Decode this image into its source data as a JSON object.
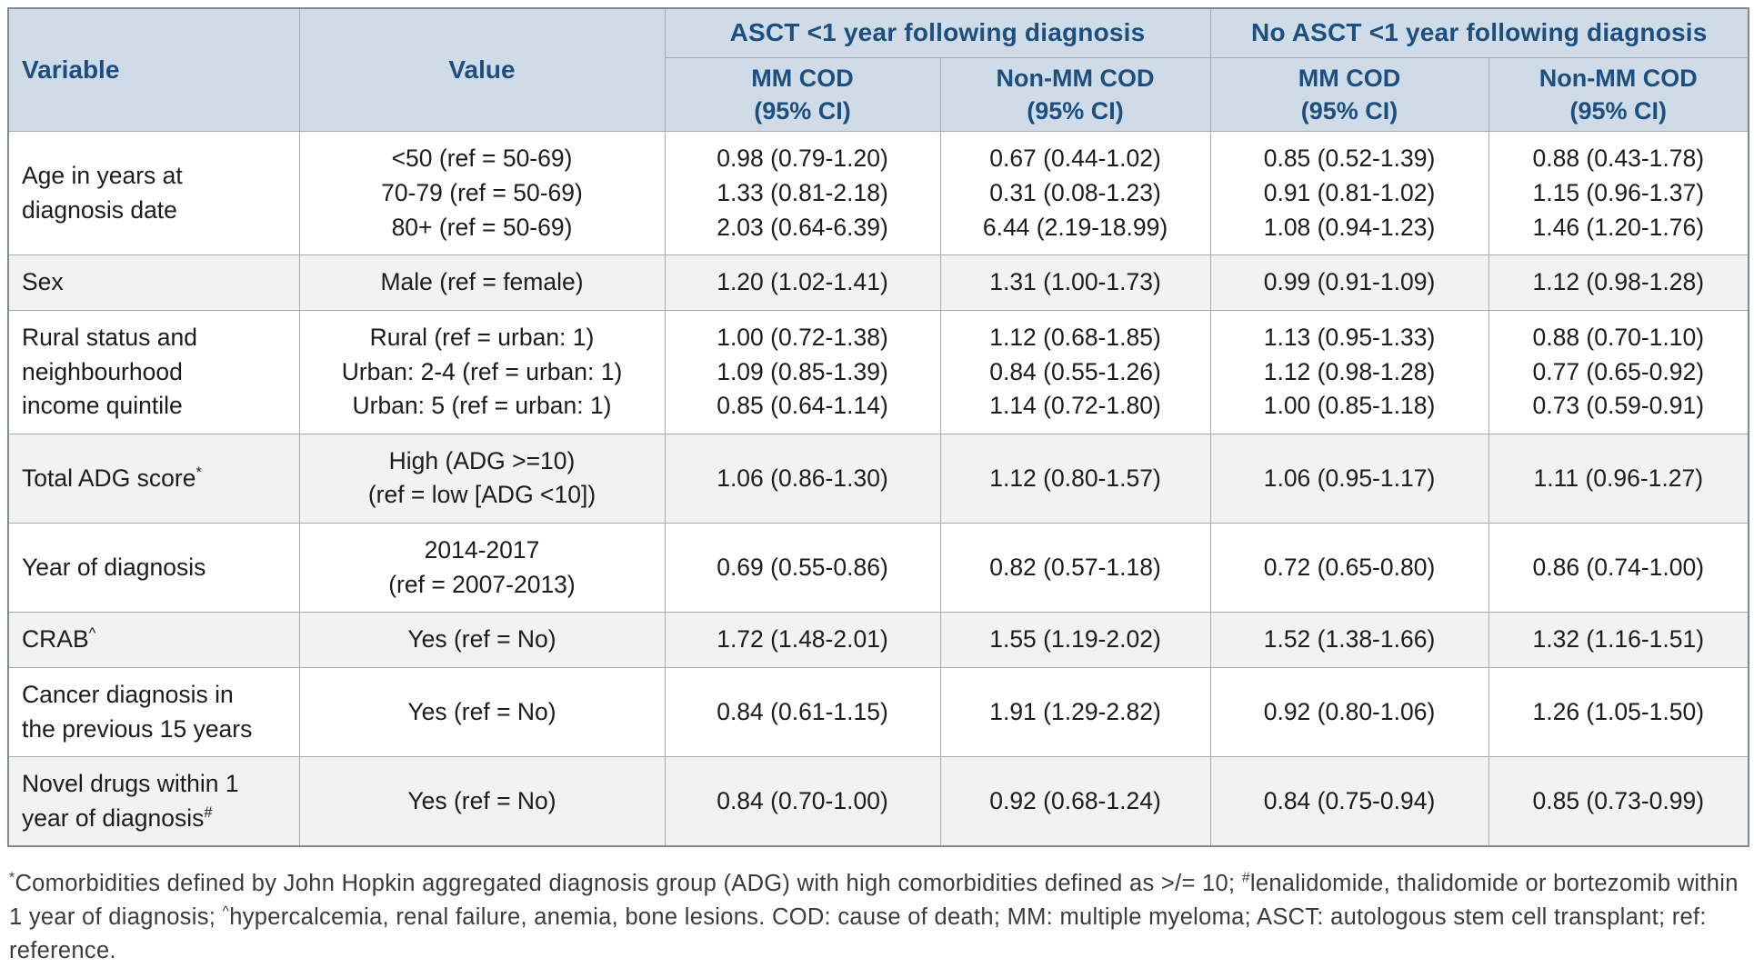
{
  "table": {
    "header": {
      "variable": "Variable",
      "value": "Value",
      "group_asct": "ASCT <1 year following diagnosis",
      "group_no_asct": "No ASCT <1 year following diagnosis",
      "subs": [
        {
          "l1": "MM COD",
          "l2": "(95% CI)"
        },
        {
          "l1": "Non-MM COD",
          "l2": "(95% CI)"
        },
        {
          "l1": "MM COD",
          "l2": "(95% CI)"
        },
        {
          "l1": "Non-MM COD",
          "l2": "(95% CI)"
        }
      ]
    },
    "rows": [
      {
        "variable": [
          "Age in years at",
          "diagnosis date"
        ],
        "variable_sup": "",
        "value": [
          "<50 (ref = 50-69)",
          "70-79 (ref = 50-69)",
          "80+ (ref = 50-69)"
        ],
        "asct_mm_cod": [
          "0.98 (0.79-1.20)",
          "1.33 (0.81-2.18)",
          "2.03 (0.64-6.39)"
        ],
        "asct_nonmm_cod": [
          "0.67 (0.44-1.02)",
          "0.31 (0.08-1.23)",
          "6.44 (2.19-18.99)"
        ],
        "noasct_mm_cod": [
          "0.85 (0.52-1.39)",
          "0.91 (0.81-1.02)",
          "1.08 (0.94-1.23)"
        ],
        "noasct_nonmm_cod": [
          "0.88 (0.43-1.78)",
          "1.15 (0.96-1.37)",
          "1.46 (1.20-1.76)"
        ]
      },
      {
        "variable": [
          "Sex"
        ],
        "variable_sup": "",
        "value": [
          "Male (ref = female)"
        ],
        "asct_mm_cod": [
          "1.20 (1.02-1.41)"
        ],
        "asct_nonmm_cod": [
          "1.31 (1.00-1.73)"
        ],
        "noasct_mm_cod": [
          "0.99 (0.91-1.09)"
        ],
        "noasct_nonmm_cod": [
          "1.12 (0.98-1.28)"
        ]
      },
      {
        "variable": [
          "Rural status and",
          "neighbourhood",
          "income quintile"
        ],
        "variable_sup": "",
        "value": [
          "Rural (ref = urban: 1)",
          "Urban: 2-4 (ref = urban: 1)",
          "Urban: 5 (ref = urban: 1)"
        ],
        "asct_mm_cod": [
          "1.00 (0.72-1.38)",
          "1.09 (0.85-1.39)",
          "0.85 (0.64-1.14)"
        ],
        "asct_nonmm_cod": [
          "1.12 (0.68-1.85)",
          "0.84 (0.55-1.26)",
          "1.14 (0.72-1.80)"
        ],
        "noasct_mm_cod": [
          "1.13 (0.95-1.33)",
          "1.12 (0.98-1.28)",
          "1.00 (0.85-1.18)"
        ],
        "noasct_nonmm_cod": [
          "0.88 (0.70-1.10)",
          "0.77 (0.65-0.92)",
          "0.73 (0.59-0.91)"
        ]
      },
      {
        "variable": [
          "Total ADG score"
        ],
        "variable_sup": "*",
        "value": [
          "High (ADG >=10)",
          "(ref = low [ADG <10])"
        ],
        "asct_mm_cod": [
          "1.06 (0.86-1.30)"
        ],
        "asct_nonmm_cod": [
          "1.12 (0.80-1.57)"
        ],
        "noasct_mm_cod": [
          "1.06 (0.95-1.17)"
        ],
        "noasct_nonmm_cod": [
          "1.11 (0.96-1.27)"
        ]
      },
      {
        "variable": [
          "Year of diagnosis"
        ],
        "variable_sup": "",
        "value": [
          "2014-2017",
          "(ref = 2007-2013)"
        ],
        "asct_mm_cod": [
          "0.69 (0.55-0.86)"
        ],
        "asct_nonmm_cod": [
          "0.82 (0.57-1.18)"
        ],
        "noasct_mm_cod": [
          "0.72 (0.65-0.80)"
        ],
        "noasct_nonmm_cod": [
          "0.86 (0.74-1.00)"
        ]
      },
      {
        "variable": [
          "CRAB"
        ],
        "variable_sup": "^",
        "value": [
          "Yes (ref = No)"
        ],
        "asct_mm_cod": [
          "1.72 (1.48-2.01)"
        ],
        "asct_nonmm_cod": [
          "1.55 (1.19-2.02)"
        ],
        "noasct_mm_cod": [
          "1.52 (1.38-1.66)"
        ],
        "noasct_nonmm_cod": [
          "1.32 (1.16-1.51)"
        ]
      },
      {
        "variable": [
          "Cancer diagnosis in",
          "the previous 15 years"
        ],
        "variable_sup": "",
        "value": [
          "Yes (ref = No)"
        ],
        "asct_mm_cod": [
          "0.84 (0.61-1.15)"
        ],
        "asct_nonmm_cod": [
          "1.91 (1.29-2.82)"
        ],
        "noasct_mm_cod": [
          "0.92 (0.80-1.06)"
        ],
        "noasct_nonmm_cod": [
          "1.26 (1.05-1.50)"
        ]
      },
      {
        "variable": [
          "Novel drugs within 1",
          "year of diagnosis"
        ],
        "variable_sup": "#",
        "value": [
          "Yes (ref = No)"
        ],
        "asct_mm_cod": [
          "0.84 (0.70-1.00)"
        ],
        "asct_nonmm_cod": [
          "0.92 (0.68-1.24)"
        ],
        "noasct_mm_cod": [
          "0.84 (0.75-0.94)"
        ],
        "noasct_nonmm_cod": [
          "0.85 (0.73-0.99)"
        ]
      }
    ]
  },
  "footnote": {
    "segments": [
      {
        "sup": true,
        "text": "*"
      },
      {
        "sup": false,
        "text": "Comorbidities defined by John Hopkin aggregated diagnosis group (ADG) with high comorbidities defined as >/= 10; "
      },
      {
        "sup": true,
        "text": "#"
      },
      {
        "sup": false,
        "text": "lenalidomide, thalidomide or bortezomib within 1 year of diagnosis; "
      },
      {
        "sup": true,
        "text": "^"
      },
      {
        "sup": false,
        "text": "hypercalcemia, renal failure, anemia, bone lesions. COD: cause of death; MM: multiple myeloma; ASCT: autologous stem cell transplant; ref: reference."
      }
    ]
  },
  "colors": {
    "header_bg": "#cfdbe6",
    "header_text": "#1c4f80",
    "stripe_bg": "#f2f2f2",
    "body_text": "#1c1c1c",
    "border": "#a3abb3"
  }
}
